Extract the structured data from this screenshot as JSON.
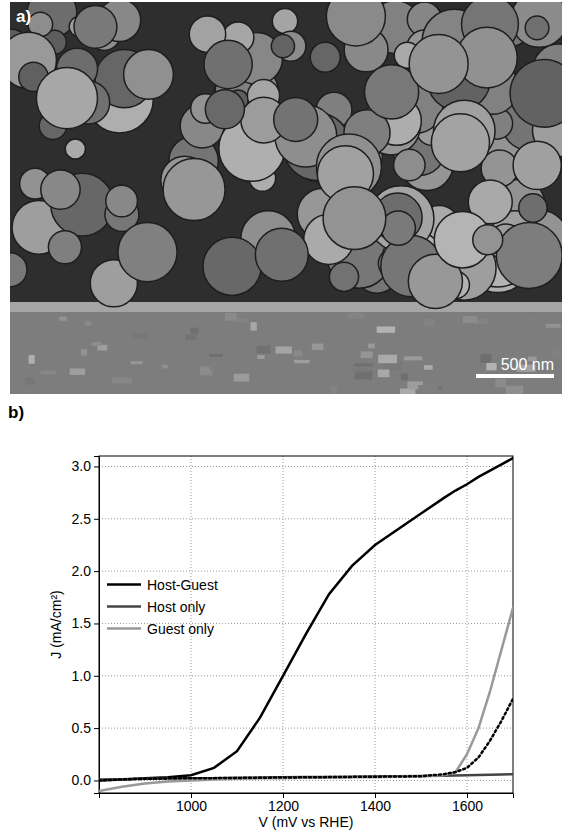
{
  "image_panel": {
    "label": "a)",
    "scale_bar_label": "500 nm"
  },
  "chart_data": {
    "type": "line",
    "panel_label": "b)",
    "x_label": "V (mV vs RHE)",
    "y_label": "J (mA/cm²)",
    "x": [
      800,
      850,
      900,
      950,
      1000,
      1050,
      1100,
      1150,
      1200,
      1250,
      1300,
      1350,
      1400,
      1450,
      1500,
      1550,
      1575,
      1600,
      1625,
      1650,
      1675,
      1700
    ],
    "series": [
      {
        "name": "Host-Guest",
        "color": "#000000",
        "line_style": "solid",
        "values": [
          0.0,
          0.01,
          0.02,
          0.03,
          0.05,
          0.12,
          0.28,
          0.6,
          1.0,
          1.4,
          1.78,
          2.05,
          2.25,
          2.4,
          2.55,
          2.7,
          2.77,
          2.83,
          2.9,
          2.96,
          3.02,
          3.08
        ]
      },
      {
        "name": "Host only",
        "color": "#444444",
        "line_style": "solid",
        "values": [
          0.01,
          0.012,
          0.015,
          0.018,
          0.02,
          0.022,
          0.025,
          0.027,
          0.03,
          0.032,
          0.034,
          0.036,
          0.038,
          0.04,
          0.042,
          0.045,
          0.047,
          0.05,
          0.052,
          0.055,
          0.057,
          0.06
        ]
      },
      {
        "name": "Guest only",
        "color": "#999999",
        "line_style": "solid",
        "values": [
          -0.1,
          -0.06,
          -0.03,
          -0.01,
          0.0,
          0.01,
          0.015,
          0.02,
          0.02,
          0.025,
          0.025,
          0.03,
          0.03,
          0.035,
          0.04,
          0.05,
          0.08,
          0.25,
          0.5,
          0.85,
          1.25,
          1.65
        ]
      },
      {
        "color": "#000000",
        "line_style": "dotted",
        "values": [
          0.0,
          0.01,
          0.015,
          0.02,
          0.02,
          0.022,
          0.024,
          0.026,
          0.028,
          0.03,
          0.032,
          0.034,
          0.036,
          0.038,
          0.04,
          0.06,
          0.08,
          0.12,
          0.22,
          0.38,
          0.57,
          0.78
        ]
      }
    ],
    "xlim": [
      800,
      1700
    ],
    "xticks": [
      1000,
      1200,
      1400,
      1600
    ],
    "ylim": [
      -0.12,
      3.1
    ],
    "yticks": [
      {
        "value": 0,
        "label": "0.0"
      },
      {
        "value": 0.5,
        "label": "0.5"
      },
      {
        "value": 1,
        "label": "1.0"
      },
      {
        "value": 1.5,
        "label": "1.5"
      },
      {
        "value": 2,
        "label": "2.0"
      },
      {
        "value": 2.5,
        "label": "2.5"
      },
      {
        "value": 3,
        "label": "3.0"
      }
    ],
    "grid": true,
    "legend": "center-left"
  }
}
